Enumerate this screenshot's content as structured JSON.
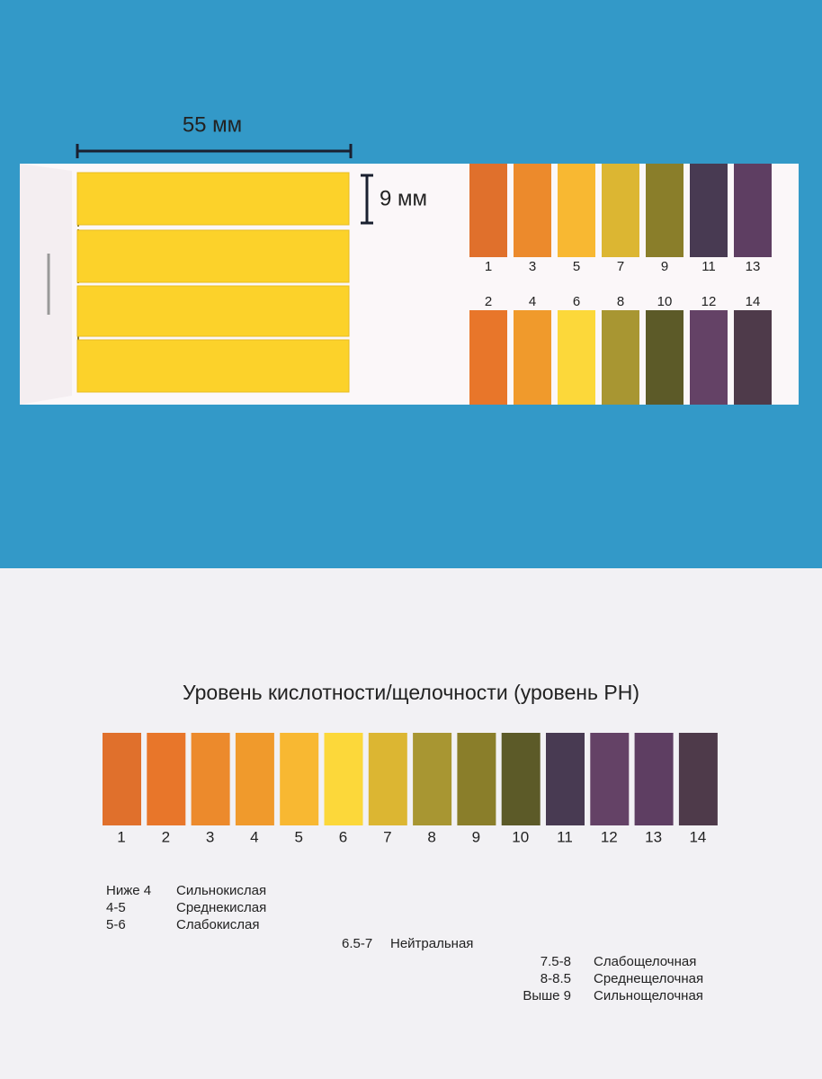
{
  "dimensions": {
    "length": "55 мм",
    "width": "9 мм"
  },
  "title": "Уровень кислотности/щелочности (уровень PH)",
  "scale": [
    {
      "label": "1",
      "color": "#e0702c"
    },
    {
      "label": "2",
      "color": "#e8762a"
    },
    {
      "label": "3",
      "color": "#ec8a2c"
    },
    {
      "label": "4",
      "color": "#f09a2c"
    },
    {
      "label": "5",
      "color": "#f8b832"
    },
    {
      "label": "6",
      "color": "#fcd83a"
    },
    {
      "label": "7",
      "color": "#dcb632"
    },
    {
      "label": "8",
      "color": "#a89632"
    },
    {
      "label": "9",
      "color": "#8a7e2a"
    },
    {
      "label": "10",
      "color": "#5c5a28"
    },
    {
      "label": "11",
      "color": "#483a52"
    },
    {
      "label": "12",
      "color": "#644266"
    },
    {
      "label": "13",
      "color": "#5e3e62"
    },
    {
      "label": "14",
      "color": "#4e3a4a"
    }
  ],
  "legend": [
    {
      "range": "Ниже 4",
      "text": "Сильнокислая"
    },
    {
      "range": "4-5",
      "text": "Среднекислая"
    },
    {
      "range": "5-6",
      "text": "Слабокислая"
    },
    {
      "range": "6.5-7",
      "text": "Нейтральная"
    },
    {
      "range": "7.5-8",
      "text": "Слабощелочная"
    },
    {
      "range": "8-8.5",
      "text": "Среднещелочная"
    },
    {
      "range": "Выше 9",
      "text": "Сильнощелочная"
    }
  ]
}
